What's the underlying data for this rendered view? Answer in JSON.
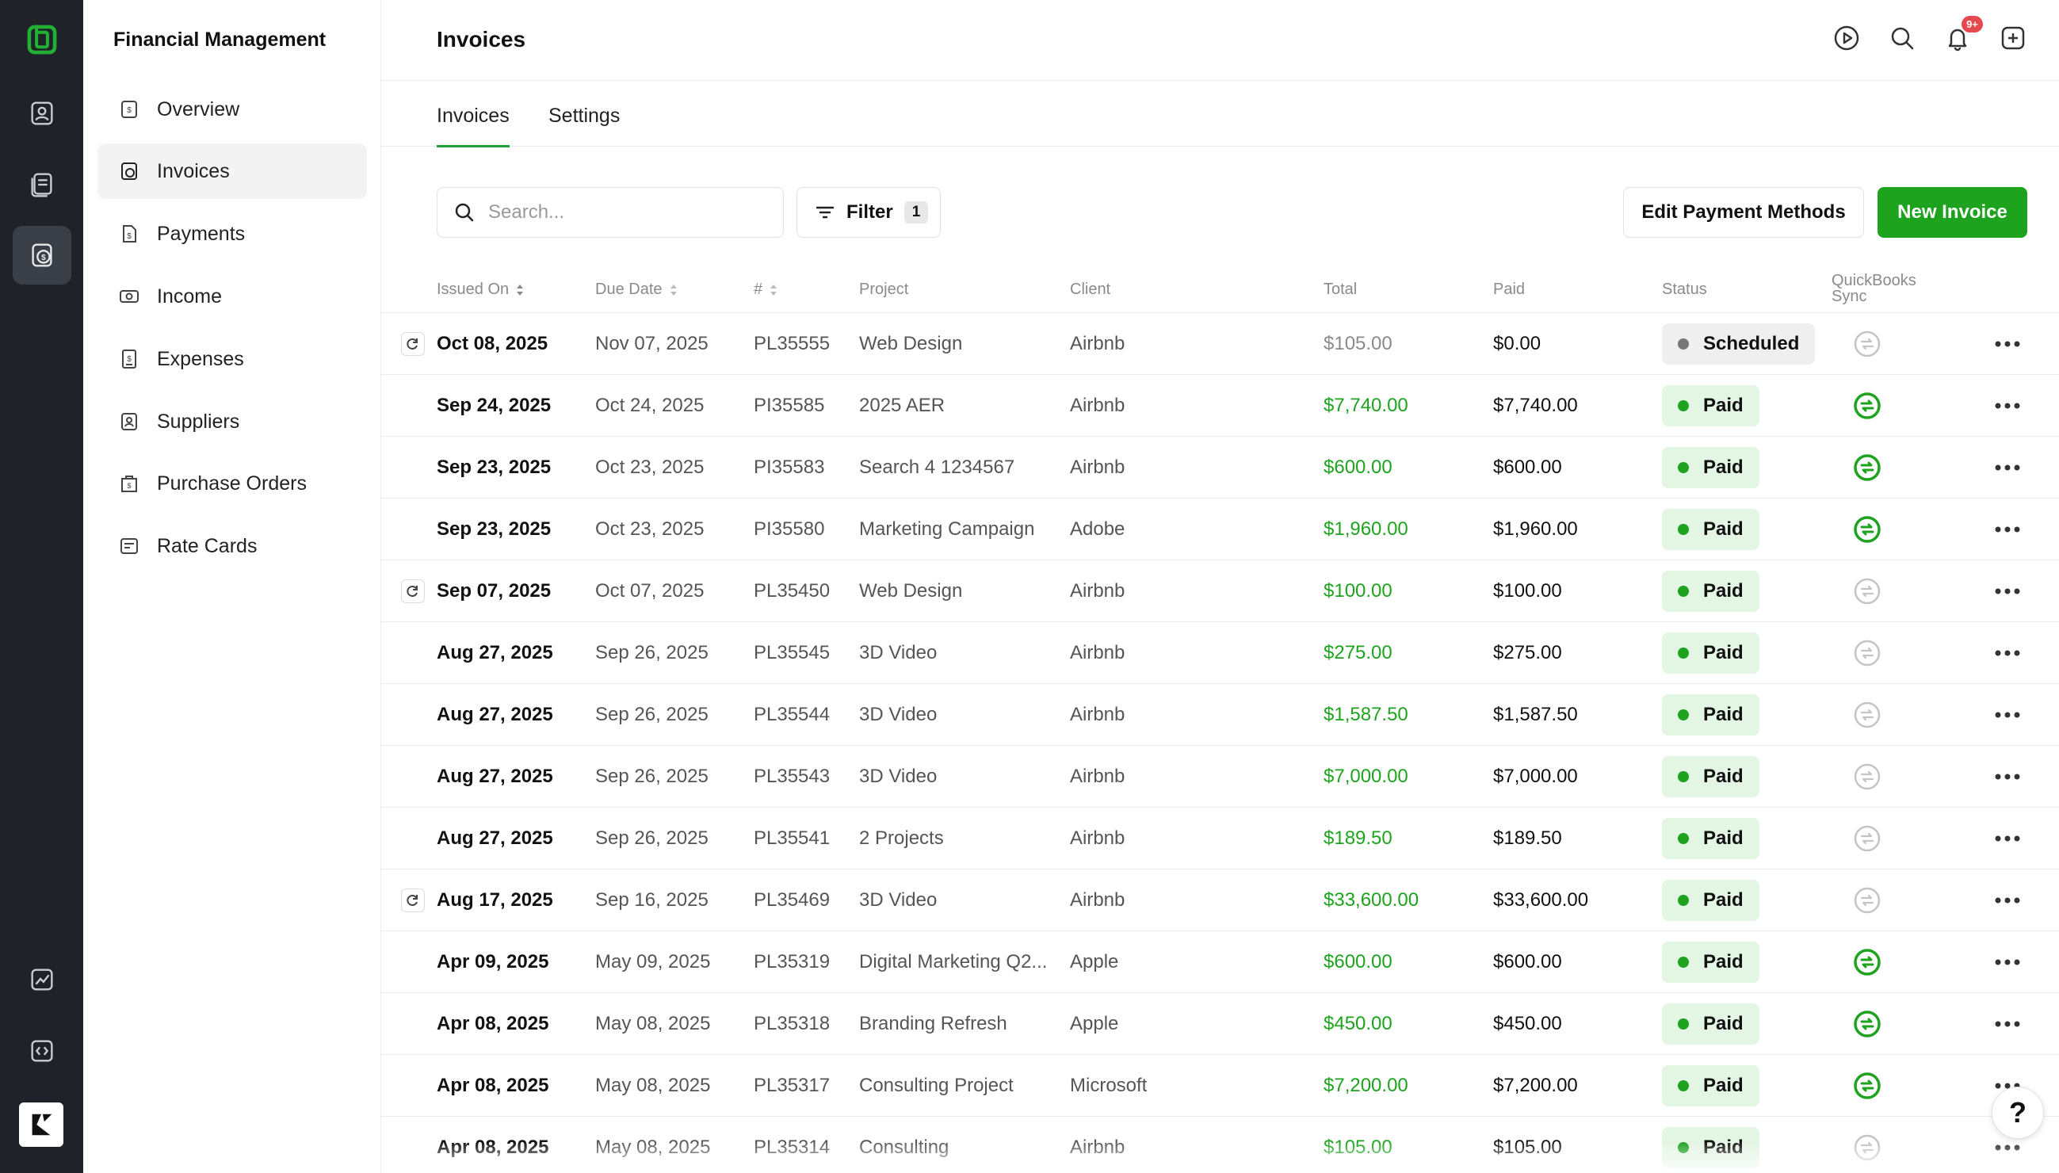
{
  "rail": {
    "icons": [
      "app-logo-icon",
      "contacts-icon",
      "documents-icon",
      "finance-icon",
      "analytics-icon",
      "code-icon",
      "brand-icon"
    ],
    "active": "finance-icon"
  },
  "sidebar": {
    "title": "Financial Management",
    "items": [
      {
        "label": "Overview",
        "icon": "overview-icon"
      },
      {
        "label": "Invoices",
        "icon": "invoices-icon",
        "active": true
      },
      {
        "label": "Payments",
        "icon": "payments-icon"
      },
      {
        "label": "Income",
        "icon": "income-icon"
      },
      {
        "label": "Expenses",
        "icon": "expenses-icon"
      },
      {
        "label": "Suppliers",
        "icon": "suppliers-icon"
      },
      {
        "label": "Purchase Orders",
        "icon": "purchase-orders-icon"
      },
      {
        "label": "Rate Cards",
        "icon": "rate-cards-icon"
      }
    ]
  },
  "header": {
    "title": "Invoices",
    "notification_count": "9+"
  },
  "tabs": [
    {
      "label": "Invoices",
      "active": true
    },
    {
      "label": "Settings"
    }
  ],
  "toolbar": {
    "search_placeholder": "Search...",
    "filter_label": "Filter",
    "filter_count": "1",
    "edit_payment_methods": "Edit Payment Methods",
    "new_invoice": "New Invoice"
  },
  "table": {
    "columns": {
      "issued_on": "Issued On",
      "due_date": "Due Date",
      "number": "#",
      "project": "Project",
      "client": "Client",
      "total": "Total",
      "paid": "Paid",
      "status": "Status",
      "qb_sync_line1": "QuickBooks",
      "qb_sync_line2": "Sync"
    },
    "rows": [
      {
        "issued": "Oct 08, 2025",
        "due": "Nov 07, 2025",
        "num": "PL35555",
        "project": "Web Design",
        "client": "Airbnb",
        "total": "$105.00",
        "paid": "$0.00",
        "status": "Scheduled",
        "recurring": true,
        "synced": false
      },
      {
        "issued": "Sep 24, 2025",
        "due": "Oct 24, 2025",
        "num": "PI35585",
        "project": "2025 AER",
        "client": "Airbnb",
        "total": "$7,740.00",
        "paid": "$7,740.00",
        "status": "Paid",
        "recurring": false,
        "synced": true
      },
      {
        "issued": "Sep 23, 2025",
        "due": "Oct 23, 2025",
        "num": "PI35583",
        "project": "Search 4 1234567",
        "client": "Airbnb",
        "total": "$600.00",
        "paid": "$600.00",
        "status": "Paid",
        "recurring": false,
        "synced": true
      },
      {
        "issued": "Sep 23, 2025",
        "due": "Oct 23, 2025",
        "num": "PI35580",
        "project": "Marketing Campaign",
        "client": "Adobe",
        "total": "$1,960.00",
        "paid": "$1,960.00",
        "status": "Paid",
        "recurring": false,
        "synced": true
      },
      {
        "issued": "Sep 07, 2025",
        "due": "Oct 07, 2025",
        "num": "PL35450",
        "project": "Web Design",
        "client": "Airbnb",
        "total": "$100.00",
        "paid": "$100.00",
        "status": "Paid",
        "recurring": true,
        "synced": false
      },
      {
        "issued": "Aug 27, 2025",
        "due": "Sep 26, 2025",
        "num": "PL35545",
        "project": "3D Video",
        "client": "Airbnb",
        "total": "$275.00",
        "paid": "$275.00",
        "status": "Paid",
        "recurring": false,
        "synced": false
      },
      {
        "issued": "Aug 27, 2025",
        "due": "Sep 26, 2025",
        "num": "PL35544",
        "project": "3D Video",
        "client": "Airbnb",
        "total": "$1,587.50",
        "paid": "$1,587.50",
        "status": "Paid",
        "recurring": false,
        "synced": false
      },
      {
        "issued": "Aug 27, 2025",
        "due": "Sep 26, 2025",
        "num": "PL35543",
        "project": "3D Video",
        "client": "Airbnb",
        "total": "$7,000.00",
        "paid": "$7,000.00",
        "status": "Paid",
        "recurring": false,
        "synced": false
      },
      {
        "issued": "Aug 27, 2025",
        "due": "Sep 26, 2025",
        "num": "PL35541",
        "project": "2 Projects",
        "client": "Airbnb",
        "total": "$189.50",
        "paid": "$189.50",
        "status": "Paid",
        "recurring": false,
        "synced": false
      },
      {
        "issued": "Aug 17, 2025",
        "due": "Sep 16, 2025",
        "num": "PL35469",
        "project": "3D Video",
        "client": "Airbnb",
        "total": "$33,600.00",
        "paid": "$33,600.00",
        "status": "Paid",
        "recurring": true,
        "synced": false
      },
      {
        "issued": "Apr 09, 2025",
        "due": "May 09, 2025",
        "num": "PL35319",
        "project": "Digital Marketing Q2...",
        "client": "Apple",
        "total": "$600.00",
        "paid": "$600.00",
        "status": "Paid",
        "recurring": false,
        "synced": true
      },
      {
        "issued": "Apr 08, 2025",
        "due": "May 08, 2025",
        "num": "PL35318",
        "project": "Branding Refresh",
        "client": "Apple",
        "total": "$450.00",
        "paid": "$450.00",
        "status": "Paid",
        "recurring": false,
        "synced": true
      },
      {
        "issued": "Apr 08, 2025",
        "due": "May 08, 2025",
        "num": "PL35317",
        "project": "Consulting Project",
        "client": "Microsoft",
        "total": "$7,200.00",
        "paid": "$7,200.00",
        "status": "Paid",
        "recurring": false,
        "synced": true
      },
      {
        "issued": "Apr 08, 2025",
        "due": "May 08, 2025",
        "num": "PL35314",
        "project": "Consulting",
        "client": "Airbnb",
        "total": "$105.00",
        "paid": "$105.00",
        "status": "Paid",
        "recurring": false,
        "synced": false
      }
    ]
  },
  "help_label": "?",
  "colors": {
    "accent": "#1ea31e",
    "rail_bg": "#1f2228",
    "paid_pill_bg": "#e3f5e3",
    "scheduled_pill_bg": "#efefef",
    "sync_inactive": "#bdbdbd"
  }
}
